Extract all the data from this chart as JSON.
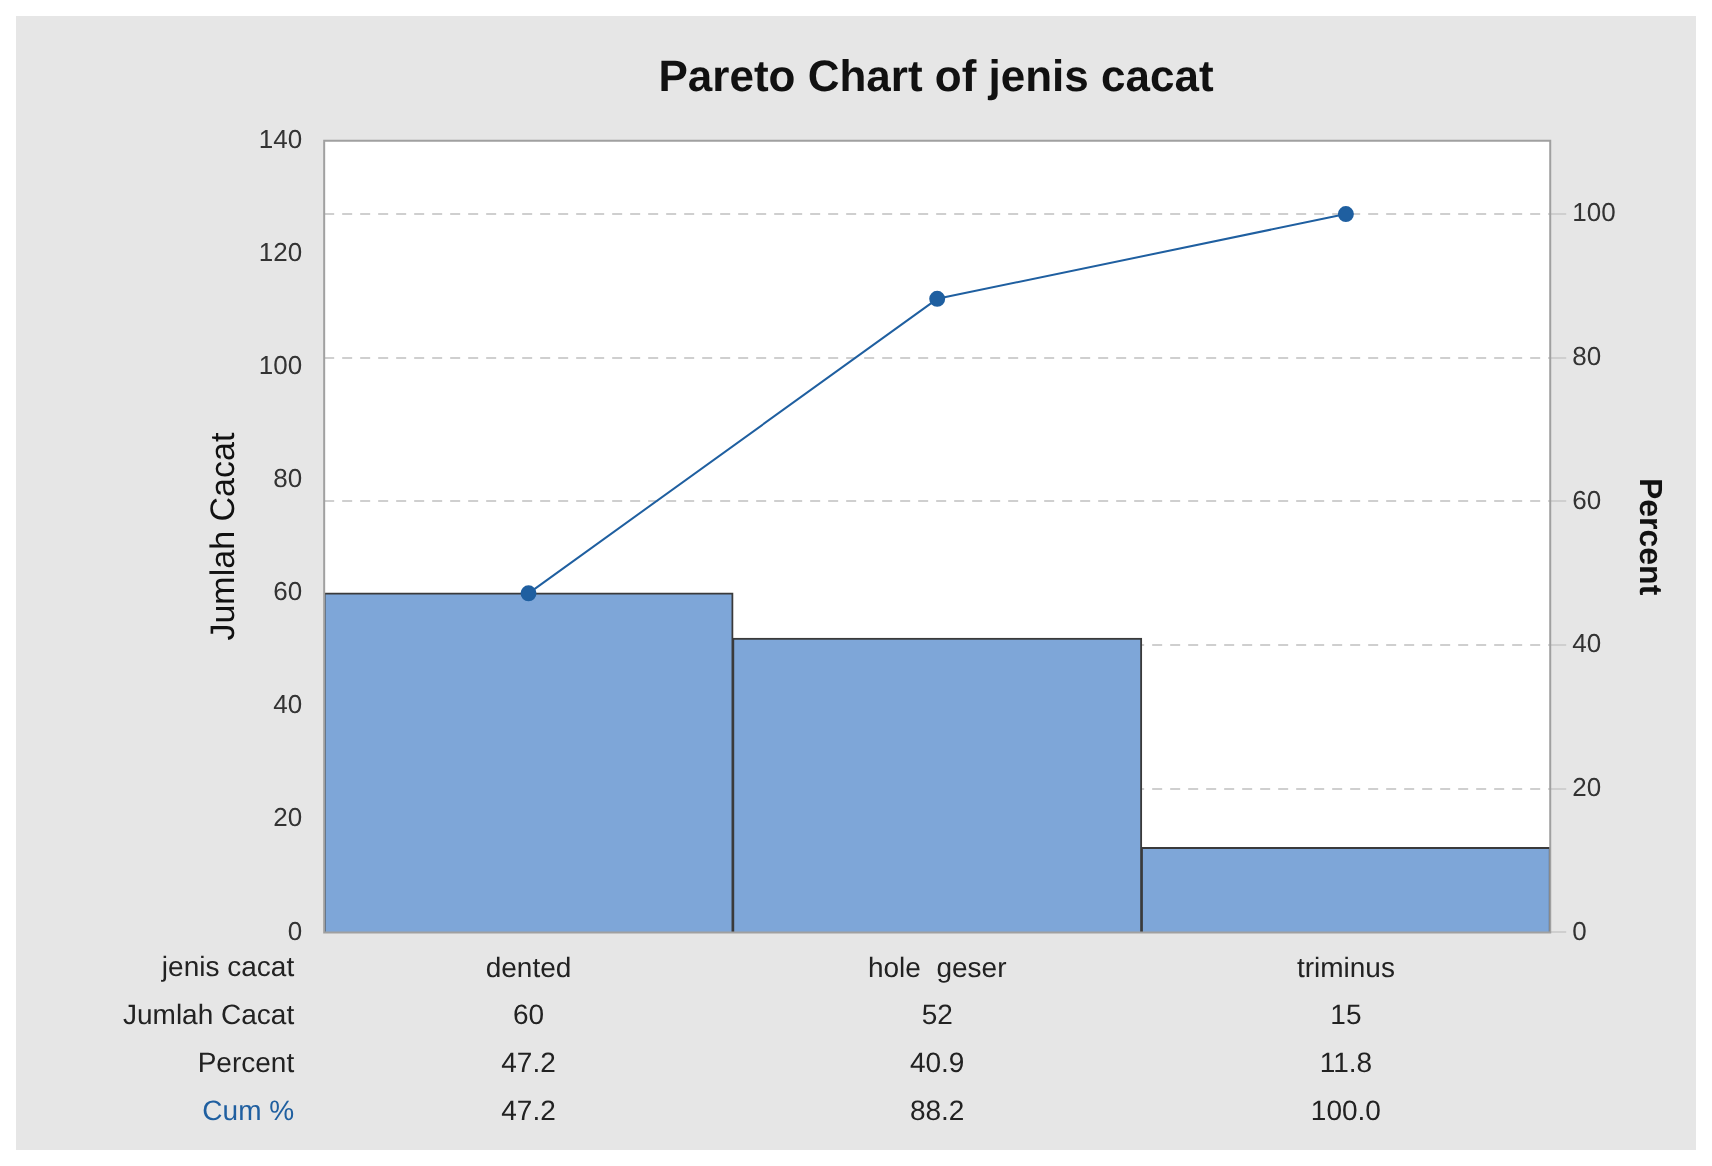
{
  "chart_data": {
    "type": "bar",
    "title": "Pareto Chart of jenis cacat",
    "xlabel": "jenis cacat",
    "ylabel": "Jumlah Cacat",
    "y2label": "Percent",
    "categories": [
      "dented",
      "hole  geser",
      "triminus"
    ],
    "series": [
      {
        "name": "Jumlah Cacat",
        "color": "#7ea6d8",
        "values": [
          60,
          52,
          15
        ],
        "value_labels": [
          "60",
          "52",
          "15"
        ]
      },
      {
        "name": "Cum %",
        "type": "line",
        "axis": "y2",
        "color": "#1f5fa0",
        "values": [
          47.2,
          88.2,
          100.0
        ],
        "value_labels": [
          "47.2",
          "88.2",
          "100.0"
        ]
      }
    ],
    "annotations": [
      "47.2",
      "40.9",
      "11.8"
    ],
    "ylim": [
      0,
      140
    ],
    "yticks": [
      0,
      20,
      40,
      60,
      80,
      100,
      120,
      140
    ],
    "y2lim": [
      0,
      110.2
    ],
    "y2ticks": [
      0,
      20,
      40,
      60,
      80,
      100
    ],
    "grid": "y",
    "legend": false,
    "marker": "circle",
    "line_style": "solid"
  }
}
